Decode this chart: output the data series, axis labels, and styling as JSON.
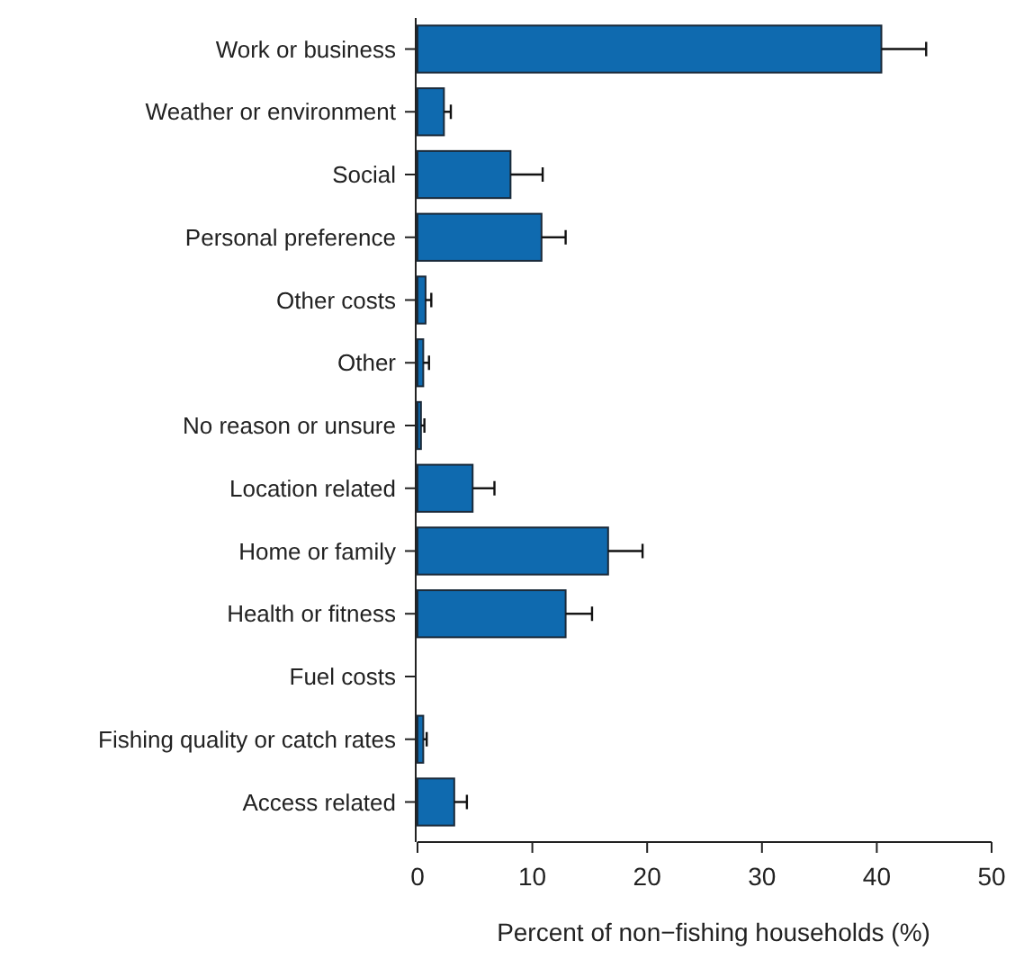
{
  "chart_data": {
    "type": "bar",
    "orientation": "horizontal",
    "xlabel": "Percent of non−fishing households (%)",
    "categories": [
      "Work or business",
      "Weather or environment",
      "Social",
      "Personal preference",
      "Other costs",
      "Other",
      "No reason or unsure",
      "Location related",
      "Home or family",
      "Health or fitness",
      "Fuel costs",
      "Fishing quality or catch rates",
      "Access related"
    ],
    "values": [
      40.4,
      2.3,
      8.1,
      10.8,
      0.7,
      0.5,
      0.3,
      4.8,
      16.6,
      12.9,
      0,
      0.5,
      3.2
    ],
    "errors": [
      [
        40.4,
        44.3
      ],
      [
        2.3,
        2.9
      ],
      [
        8.1,
        10.9
      ],
      [
        10.8,
        12.9
      ],
      [
        0.7,
        1.2
      ],
      [
        0.5,
        1.0
      ],
      [
        0.3,
        0.6
      ],
      [
        4.8,
        6.7
      ],
      [
        16.6,
        19.6
      ],
      [
        12.9,
        15.2
      ],
      null,
      [
        0.5,
        0.8
      ],
      [
        3.2,
        4.3
      ]
    ],
    "color": "#0f6aaf",
    "xlim": [
      0,
      50
    ],
    "xticks": [
      0,
      10,
      20,
      30,
      40,
      50
    ],
    "grid": false
  }
}
